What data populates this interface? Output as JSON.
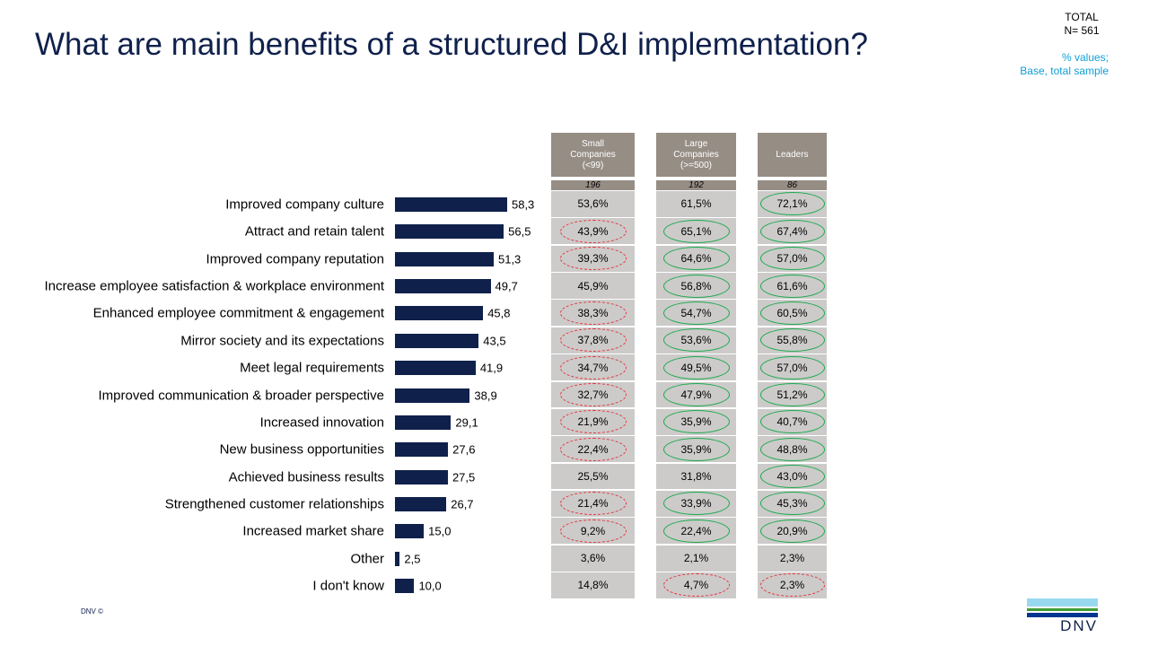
{
  "title": "What are main benefits of a structured D&I implementation?",
  "total": {
    "label": "TOTAL",
    "n": "N= 561"
  },
  "note": {
    "line1": "% values;",
    "line2": "Base, total sample"
  },
  "footer": {
    "copyright": "DNV ©",
    "logo_text": "DNV"
  },
  "colors": {
    "bar": "#0f204b",
    "header": "#968d85",
    "cell": "#cccbca",
    "significant_higher": "#1aaa4b",
    "significant_lower": "#e8323c"
  },
  "chart_data": {
    "type": "bar",
    "orientation": "horizontal",
    "categories": [
      "Improved company culture",
      "Attract and retain talent",
      "Improved company reputation",
      "Increase employee satisfaction & workplace environment",
      "Enhanced employee commitment & engagement",
      "Mirror society and its expectations",
      "Meet legal requirements",
      "Improved communication & broader perspective",
      "Increased innovation",
      "New business opportunities",
      "Achieved business results",
      "Strengthened customer relationships",
      "Increased market share",
      "Other",
      "I don't know"
    ],
    "values": [
      58.3,
      56.5,
      51.3,
      49.7,
      45.8,
      43.5,
      41.9,
      38.9,
      29.1,
      27.6,
      27.5,
      26.7,
      15.0,
      2.5,
      10.0
    ],
    "value_labels": [
      "58,3",
      "56,5",
      "51,3",
      "49,7",
      "45,8",
      "43,5",
      "41,9",
      "38,9",
      "29,1",
      "27,6",
      "27,5",
      "26,7",
      "15,0",
      "2,5",
      "10,0"
    ],
    "table": {
      "type": "table",
      "columns": [
        {
          "header": [
            "Small",
            "Companies",
            "(<99)"
          ],
          "n": "196",
          "values": [
            "53,6%",
            "43,9%",
            "39,3%",
            "45,9%",
            "38,3%",
            "37,8%",
            "34,7%",
            "32,7%",
            "21,9%",
            "22,4%",
            "25,5%",
            "21,4%",
            "9,2%",
            "3,6%",
            "14,8%"
          ],
          "marks": [
            null,
            "down",
            "down",
            null,
            "down",
            "down",
            "down",
            "down",
            "down",
            "down",
            null,
            "down",
            "down",
            null,
            null
          ]
        },
        {
          "header": [
            "Large",
            "Companies",
            "(>=500)"
          ],
          "n": "192",
          "values": [
            "61,5%",
            "65,1%",
            "64,6%",
            "56,8%",
            "54,7%",
            "53,6%",
            "49,5%",
            "47,9%",
            "35,9%",
            "35,9%",
            "31,8%",
            "33,9%",
            "22,4%",
            "2,1%",
            "4,7%"
          ],
          "marks": [
            null,
            "up",
            "up",
            "up",
            "up",
            "up",
            "up",
            "up",
            "up",
            "up",
            null,
            "up",
            "up",
            null,
            "down"
          ]
        },
        {
          "header": [
            "Leaders"
          ],
          "n": "86",
          "values": [
            "72,1%",
            "67,4%",
            "57,0%",
            "61,6%",
            "60,5%",
            "55,8%",
            "57,0%",
            "51,2%",
            "40,7%",
            "48,8%",
            "43,0%",
            "45,3%",
            "20,9%",
            "2,3%",
            "2,3%"
          ],
          "marks": [
            "up",
            "up",
            "up",
            "up",
            "up",
            "up",
            "up",
            "up",
            "up",
            "up",
            "up",
            "up",
            "up",
            null,
            "down"
          ]
        }
      ]
    }
  }
}
